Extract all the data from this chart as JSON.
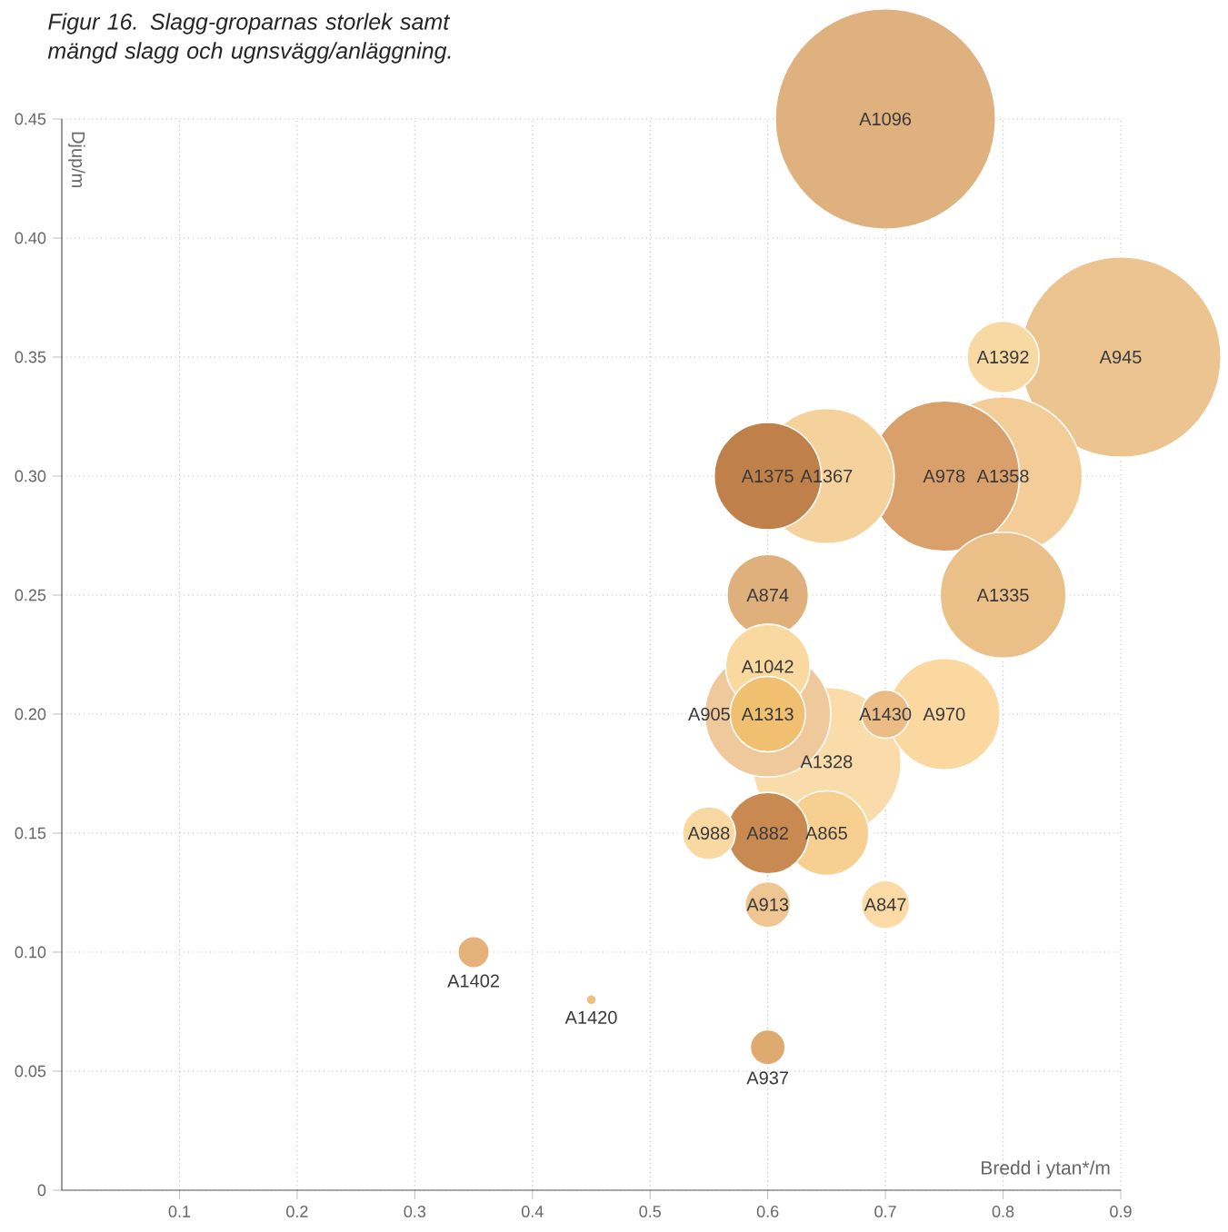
{
  "chart_data": {
    "type": "bubble",
    "title": "Figur 16. Slagg-groparnas storlek samt mängd slagg och ugnsvägg/anläggning.",
    "xlabel": "Bredd i ytan*/m",
    "ylabel": "Djup/m",
    "x": [
      0.7,
      0.9,
      0.8,
      0.75,
      0.8,
      0.65,
      0.6,
      0.8,
      0.65,
      0.6,
      0.75,
      0.6,
      0.6,
      0.6,
      0.65,
      0.6,
      0.55,
      0.7,
      0.6,
      0.7,
      0.35,
      0.45,
      0.6
    ],
    "values": [
      0.45,
      0.35,
      0.3,
      0.3,
      0.35,
      0.3,
      0.3,
      0.25,
      0.18,
      0.2,
      0.2,
      0.25,
      0.22,
      0.2,
      0.15,
      0.15,
      0.15,
      0.2,
      0.12,
      0.12,
      0.1,
      0.08,
      0.06
    ],
    "sizes": [
      1,
      0.83,
      0.52,
      0.47,
      0.11,
      0.38,
      0.24,
      0.33,
      0.46,
      0.33,
      0.26,
      0.14,
      0.15,
      0.12,
      0.15,
      0.14,
      0.06,
      0.05,
      0.045,
      0.05,
      0.022,
      0.0024,
      0.027
    ],
    "colors": [
      "#dfb17e",
      "#ecc490",
      "#f3cc98",
      "#d9a06c",
      "#f8d9a4",
      "#f5d29c",
      "#c08049",
      "#ebbf88",
      "#f9dcaa",
      "#efc99b",
      "#fad8a0",
      "#dfb07c",
      "#fad9a0",
      "#f0c070",
      "#f7cf90",
      "#c98a52",
      "#fad8a2",
      "#ebbd85",
      "#efc591",
      "#fbdaa5",
      "#e6b27c",
      "#f0c080",
      "#dfaa70"
    ],
    "grid": true,
    "xlim": [
      0,
      0.9
    ],
    "ylim": [
      0,
      0.45
    ],
    "xticks": [
      0.1,
      0.2,
      0.3,
      0.4,
      0.5,
      0.6,
      0.7,
      0.8,
      0.9
    ],
    "yticks": [
      {
        "value": 0,
        "label": "0"
      },
      0.05,
      {
        "value": 0.1,
        "label": "0.10"
      },
      0.15,
      {
        "value": 0.2,
        "label": "0.20"
      },
      0.25,
      {
        "value": 0.3,
        "label": "0.30"
      },
      0.35,
      {
        "value": 0.4,
        "label": "0.40"
      },
      0.45
    ],
    "annotations": [
      {
        "text": "A1096",
        "x": 0.7,
        "y": 0.45
      },
      {
        "text": "A945",
        "x": 0.9,
        "y": 0.35
      },
      {
        "text": "A1392",
        "x": 0.8,
        "y": 0.35
      },
      {
        "text": "A1375",
        "x": 0.6,
        "y": 0.3
      },
      {
        "text": "A1367",
        "x": 0.65,
        "y": 0.3
      },
      {
        "text": "A978",
        "x": 0.75,
        "y": 0.3
      },
      {
        "text": "A1358",
        "x": 0.8,
        "y": 0.3
      },
      {
        "text": "A874",
        "x": 0.6,
        "y": 0.25
      },
      {
        "text": "A1335",
        "x": 0.8,
        "y": 0.25
      },
      {
        "text": "A1042",
        "x": 0.6,
        "y": 0.22
      },
      {
        "text": "A905",
        "x": 0.6,
        "y": 0.2
      },
      {
        "text": "A1313",
        "x": 0.6,
        "y": 0.2
      },
      {
        "text": "A1430",
        "x": 0.7,
        "y": 0.2
      },
      {
        "text": "A970",
        "x": 0.75,
        "y": 0.2
      },
      {
        "text": "A1328",
        "x": 0.65,
        "y": 0.18
      },
      {
        "text": "A988",
        "x": 0.55,
        "y": 0.15
      },
      {
        "text": "A882",
        "x": 0.6,
        "y": 0.15
      },
      {
        "text": "A865",
        "x": 0.65,
        "y": 0.15
      },
      {
        "text": "A913",
        "x": 0.6,
        "y": 0.12
      },
      {
        "text": "A847",
        "x": 0.7,
        "y": 0.12
      },
      {
        "text": "A1402",
        "x": 0.35,
        "y": 0.1
      },
      {
        "text": "A1420",
        "x": 0.45,
        "y": 0.08
      },
      {
        "text": "A937",
        "x": 0.6,
        "y": 0.06
      }
    ]
  }
}
